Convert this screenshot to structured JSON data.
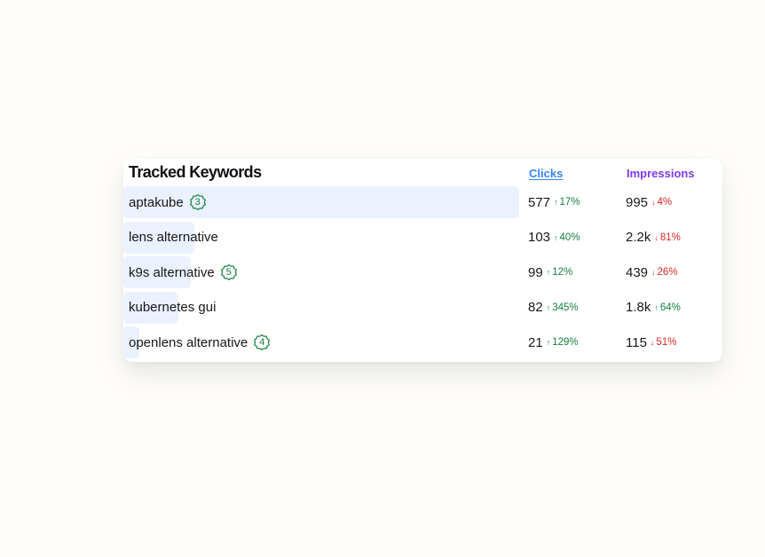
{
  "header": {
    "title": "Tracked Keywords",
    "clicks_label": "Clicks",
    "impressions_label": "Impressions"
  },
  "rows": [
    {
      "keyword": "aptakube",
      "rank": "3",
      "share": 1.0,
      "clicks": "577",
      "clicks_delta": "17%",
      "clicks_dir": "up",
      "impressions": "995",
      "impr_delta": "4%",
      "impr_dir": "down"
    },
    {
      "keyword": "lens alternative",
      "rank": "",
      "share": 0.18,
      "clicks": "103",
      "clicks_delta": "40%",
      "clicks_dir": "up",
      "impressions": "2.2k",
      "impr_delta": "81%",
      "impr_dir": "down"
    },
    {
      "keyword": "k9s alternative",
      "rank": "5",
      "share": 0.17,
      "clicks": "99",
      "clicks_delta": "12%",
      "clicks_dir": "up",
      "impressions": "439",
      "impr_delta": "26%",
      "impr_dir": "down"
    },
    {
      "keyword": "kubernetes gui",
      "rank": "",
      "share": 0.14,
      "clicks": "82",
      "clicks_delta": "345%",
      "clicks_dir": "up",
      "impressions": "1.8k",
      "impr_delta": "64%",
      "impr_dir": "up"
    },
    {
      "keyword": "openlens alternative",
      "rank": "4",
      "share": 0.04,
      "clicks": "21",
      "clicks_delta": "129%",
      "clicks_dir": "up",
      "impressions": "115",
      "impr_delta": "51%",
      "impr_dir": "down"
    }
  ],
  "colors": {
    "bar": "#ebf1fe",
    "up": "#15803d",
    "down": "#dc2626",
    "clicks_header": "#3b82f6",
    "impressions_header": "#7c3aed"
  },
  "icons": {
    "up": "arrow-up-icon",
    "down": "arrow-down-icon",
    "rank": "rank-badge-icon"
  }
}
